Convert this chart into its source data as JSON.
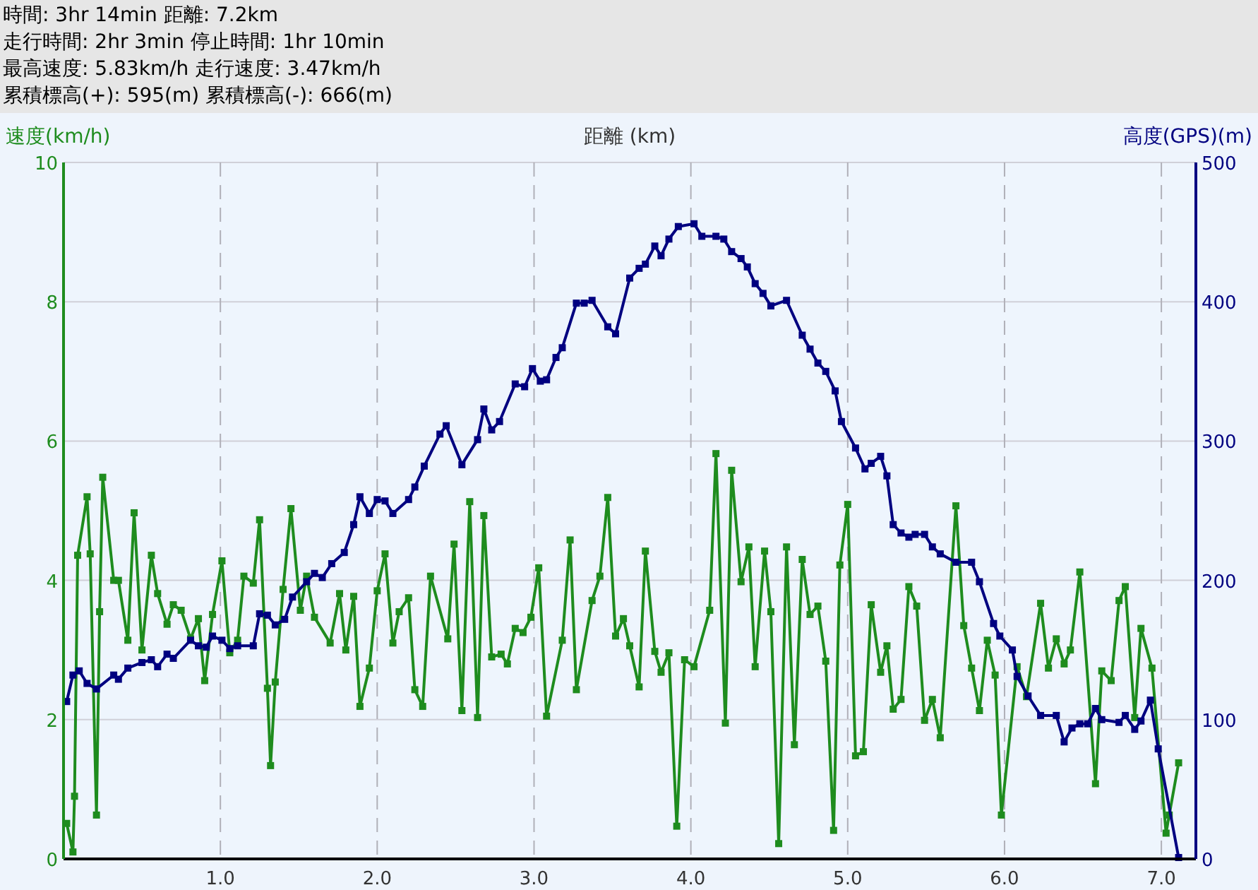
{
  "chart_data": {
    "type": "line",
    "xlabel": "距離 (km)",
    "ylabel": "速度(km/h)",
    "y2label": "高度(GPS)(m)",
    "annotations": [
      "時間: 3hr 14min 距離: 7.2km",
      "走行時間: 2hr 3min 停止時間: 1hr 10min",
      "最高速度: 5.83km/h 走行速度: 3.47km/h",
      "累積標高(+): 595(m) 累積標高(-): 666(m)"
    ],
    "xlim": [
      0,
      7.22
    ],
    "xticks": [
      {
        "value": 1,
        "label": "1.0"
      },
      {
        "value": 2,
        "label": "2.0"
      },
      {
        "value": 3,
        "label": "3.0"
      },
      {
        "value": 4,
        "label": "4.0"
      },
      {
        "value": 5,
        "label": "5.0"
      },
      {
        "value": 6,
        "label": "6.0"
      },
      {
        "value": 7,
        "label": "7.0"
      }
    ],
    "ylim": [
      0,
      10
    ],
    "yticks": [
      0,
      2,
      4,
      6,
      8,
      10
    ],
    "y2lim": [
      0,
      500
    ],
    "y2ticks": [
      0,
      100,
      200,
      300,
      400,
      500
    ],
    "grid": true,
    "marker": "square",
    "line_style": "solid",
    "series": [
      {
        "color": "#1e8c1e",
        "x": [
          0.02,
          0.06,
          0.07,
          0.09,
          0.15,
          0.17,
          0.21,
          0.23,
          0.25,
          0.32,
          0.35,
          0.41,
          0.45,
          0.5,
          0.56,
          0.6,
          0.66,
          0.7,
          0.75,
          0.81,
          0.86,
          0.9,
          0.95,
          1.01,
          1.06,
          1.11,
          1.15,
          1.21,
          1.25,
          1.3,
          1.32,
          1.35,
          1.4,
          1.45,
          1.51,
          1.55,
          1.6,
          1.7,
          1.76,
          1.8,
          1.85,
          1.89,
          1.95,
          2.0,
          2.05,
          2.1,
          2.14,
          2.2,
          2.24,
          2.29,
          2.34,
          2.45,
          2.49,
          2.54,
          2.59,
          2.64,
          2.68,
          2.73,
          2.79,
          2.83,
          2.88,
          2.93,
          2.98,
          3.03,
          3.08,
          3.18,
          3.23,
          3.27,
          3.37,
          3.42,
          3.47,
          3.52,
          3.57,
          3.61,
          3.67,
          3.71,
          3.77,
          3.81,
          3.86,
          3.91,
          3.96,
          4.02,
          4.12,
          4.16,
          4.22,
          4.26,
          4.32,
          4.37,
          4.41,
          4.47,
          4.51,
          4.56,
          4.61,
          4.66,
          4.71,
          4.76,
          4.81,
          4.86,
          4.91,
          4.95,
          5.0,
          5.05,
          5.1,
          5.15,
          5.21,
          5.25,
          5.29,
          5.34,
          5.39,
          5.44,
          5.49,
          5.54,
          5.59,
          5.69,
          5.74,
          5.79,
          5.84,
          5.89,
          5.94,
          5.98,
          6.08,
          6.14,
          6.23,
          6.28,
          6.33,
          6.38,
          6.42,
          6.48,
          6.58,
          6.62,
          6.68,
          6.73,
          6.77,
          6.83,
          6.87,
          6.94,
          7.03,
          7.05,
          7.11
        ],
        "values": [
          0.51,
          0.1,
          0.9,
          4.36,
          5.2,
          4.38,
          0.63,
          3.55,
          5.48,
          4.0,
          4.0,
          3.14,
          4.97,
          3.0,
          4.36,
          3.81,
          3.37,
          3.65,
          3.57,
          3.16,
          3.45,
          2.56,
          3.51,
          4.28,
          2.96,
          3.14,
          4.06,
          3.96,
          4.87,
          2.45,
          1.34,
          2.54,
          3.87,
          5.03,
          3.57,
          4.06,
          3.47,
          3.1,
          3.81,
          3.0,
          3.77,
          2.19,
          2.74,
          3.85,
          4.38,
          3.1,
          3.55,
          3.75,
          2.43,
          2.19,
          4.06,
          3.16,
          4.52,
          2.13,
          5.13,
          2.03,
          4.93,
          2.9,
          2.94,
          2.8,
          3.31,
          3.25,
          3.47,
          4.18,
          2.05,
          3.14,
          4.58,
          2.43,
          3.71,
          4.06,
          5.19,
          3.2,
          3.45,
          3.06,
          2.47,
          4.42,
          2.98,
          2.68,
          2.96,
          0.47,
          2.86,
          2.76,
          3.57,
          5.82,
          1.95,
          5.58,
          3.98,
          4.48,
          2.76,
          4.42,
          3.55,
          0.22,
          4.48,
          1.64,
          4.3,
          3.51,
          3.63,
          2.84,
          0.41,
          4.22,
          5.09,
          1.48,
          1.54,
          3.65,
          2.68,
          3.06,
          2.15,
          2.29,
          3.91,
          3.63,
          1.99,
          2.29,
          1.74,
          5.07,
          3.35,
          2.74,
          2.13,
          3.14,
          2.64,
          0.63,
          2.76,
          2.33,
          3.67,
          2.74,
          3.16,
          2.8,
          3.0,
          4.12,
          1.08,
          2.7,
          2.56,
          3.71,
          3.91,
          2.03,
          3.31,
          2.74,
          0.37,
          0.63,
          1.38
        ]
      },
      {
        "color": "#000080",
        "axis": "y2",
        "x": [
          0.02,
          0.06,
          0.1,
          0.15,
          0.21,
          0.32,
          0.35,
          0.41,
          0.5,
          0.56,
          0.6,
          0.66,
          0.7,
          0.81,
          0.86,
          0.91,
          0.95,
          1.01,
          1.06,
          1.11,
          1.21,
          1.25,
          1.3,
          1.35,
          1.41,
          1.46,
          1.55,
          1.6,
          1.65,
          1.71,
          1.79,
          1.85,
          1.89,
          1.95,
          2.0,
          2.05,
          2.1,
          2.2,
          2.24,
          2.3,
          2.4,
          2.44,
          2.54,
          2.64,
          2.68,
          2.73,
          2.78,
          2.88,
          2.94,
          2.99,
          3.04,
          3.08,
          3.14,
          3.18,
          3.27,
          3.32,
          3.37,
          3.47,
          3.52,
          3.61,
          3.67,
          3.71,
          3.77,
          3.81,
          3.86,
          3.92,
          4.02,
          4.07,
          4.16,
          4.21,
          4.26,
          4.32,
          4.36,
          4.41,
          4.46,
          4.51,
          4.61,
          4.71,
          4.76,
          4.81,
          4.86,
          4.92,
          4.96,
          5.05,
          5.11,
          5.15,
          5.21,
          5.25,
          5.29,
          5.34,
          5.39,
          5.43,
          5.49,
          5.54,
          5.59,
          5.69,
          5.79,
          5.84,
          5.93,
          5.97,
          6.05,
          6.08,
          6.15,
          6.23,
          6.33,
          6.38,
          6.43,
          6.48,
          6.53,
          6.58,
          6.62,
          6.73,
          6.77,
          6.83,
          6.87,
          6.93,
          6.98,
          7.11
        ],
        "values": [
          113,
          132,
          135,
          126,
          122,
          132,
          129,
          137,
          141,
          143,
          138,
          147,
          144,
          157,
          153,
          152,
          160,
          157,
          151,
          153,
          153,
          176,
          175,
          168,
          172,
          188,
          199,
          205,
          202,
          212,
          220,
          240,
          260,
          248,
          258,
          257,
          248,
          258,
          267,
          282,
          305,
          311,
          283,
          301,
          323,
          308,
          314,
          341,
          339,
          352,
          343,
          344,
          360,
          367,
          399,
          399,
          401,
          382,
          377,
          417,
          424,
          427,
          440,
          433,
          445,
          454,
          456,
          447,
          447,
          445,
          436,
          431,
          425,
          413,
          406,
          397,
          401,
          376,
          366,
          356,
          350,
          336,
          314,
          295,
          280,
          284,
          289,
          275,
          240,
          234,
          231,
          233,
          233,
          224,
          219,
          213,
          213,
          199,
          169,
          160,
          150,
          131,
          117,
          103,
          103,
          84,
          94,
          97,
          97,
          108,
          100,
          98,
          103,
          93,
          99,
          114,
          79,
          1
        ]
      }
    ]
  }
}
